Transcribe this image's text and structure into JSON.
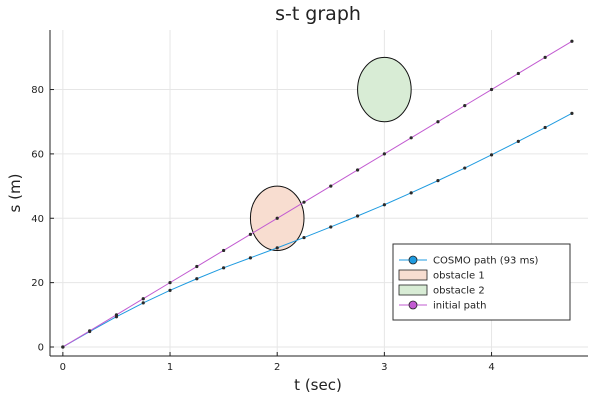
{
  "chart_data": {
    "type": "line",
    "title": "s-t graph",
    "xlabel": "t (sec)",
    "ylabel": "s (m)",
    "xlim": [
      -0.12,
      4.9
    ],
    "ylim": [
      -2.8,
      98.5
    ],
    "xticks": [
      0,
      1,
      2,
      3,
      4
    ],
    "yticks": [
      0,
      20,
      40,
      60,
      80
    ],
    "grid": true,
    "legend_position": "bottom-right",
    "series": [
      {
        "name": "COSMO path (93 ms)",
        "color": "#1f9be0",
        "marker": true,
        "x": [
          0,
          0.25,
          0.5,
          0.75,
          1.0,
          1.25,
          1.5,
          1.75,
          2.0,
          2.25,
          2.5,
          2.75,
          3.0,
          3.25,
          3.5,
          3.75,
          4.0,
          4.25,
          4.5,
          4.75
        ],
        "y": [
          0,
          4.8,
          9.4,
          13.7,
          17.6,
          21.2,
          24.6,
          27.7,
          30.8,
          34.0,
          37.3,
          40.7,
          44.2,
          47.9,
          51.7,
          55.6,
          59.7,
          63.9,
          68.2,
          72.6
        ]
      },
      {
        "name": "initial path",
        "color": "#c25bd1",
        "marker": true,
        "x": [
          0,
          0.25,
          0.5,
          0.75,
          1.0,
          1.25,
          1.5,
          1.75,
          2.0,
          2.25,
          2.5,
          2.75,
          3.0,
          3.25,
          3.5,
          3.75,
          4.0,
          4.25,
          4.5,
          4.75
        ],
        "y": [
          0,
          5,
          10,
          15,
          20,
          25,
          30,
          35,
          40,
          45,
          50,
          55,
          60,
          65,
          70,
          75,
          80,
          85,
          90,
          95
        ]
      }
    ],
    "obstacles": [
      {
        "name": "obstacle 1",
        "center": [
          2.0,
          40.0
        ],
        "radius": [
          0.25,
          10.0
        ],
        "color": "#f8ddd0"
      },
      {
        "name": "obstacle 2",
        "center": [
          3.0,
          80.0
        ],
        "radius": [
          0.25,
          10.0
        ],
        "color": "#d8ecd5"
      }
    ],
    "legend": [
      "COSMO path (93 ms)",
      "obstacle 1",
      "obstacle 2",
      "initial path"
    ]
  }
}
